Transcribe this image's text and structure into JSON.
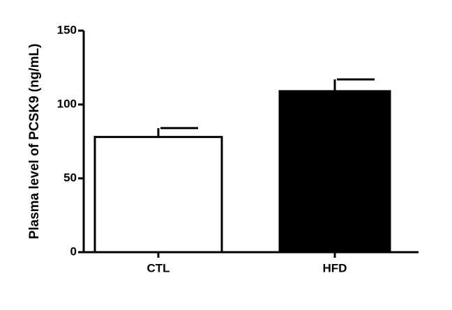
{
  "chart_data": {
    "type": "bar",
    "y_label": "Plasma level of PCSK9 (ng/mL)",
    "categories": [
      "CTL",
      "HFD"
    ],
    "values": [
      78,
      109
    ],
    "errors": [
      6,
      8
    ],
    "colors": [
      "#ffffff",
      "#000000"
    ],
    "edge_color": "#000000",
    "ylim": [
      0,
      150
    ],
    "yticks": [
      0,
      50,
      100,
      150
    ]
  }
}
